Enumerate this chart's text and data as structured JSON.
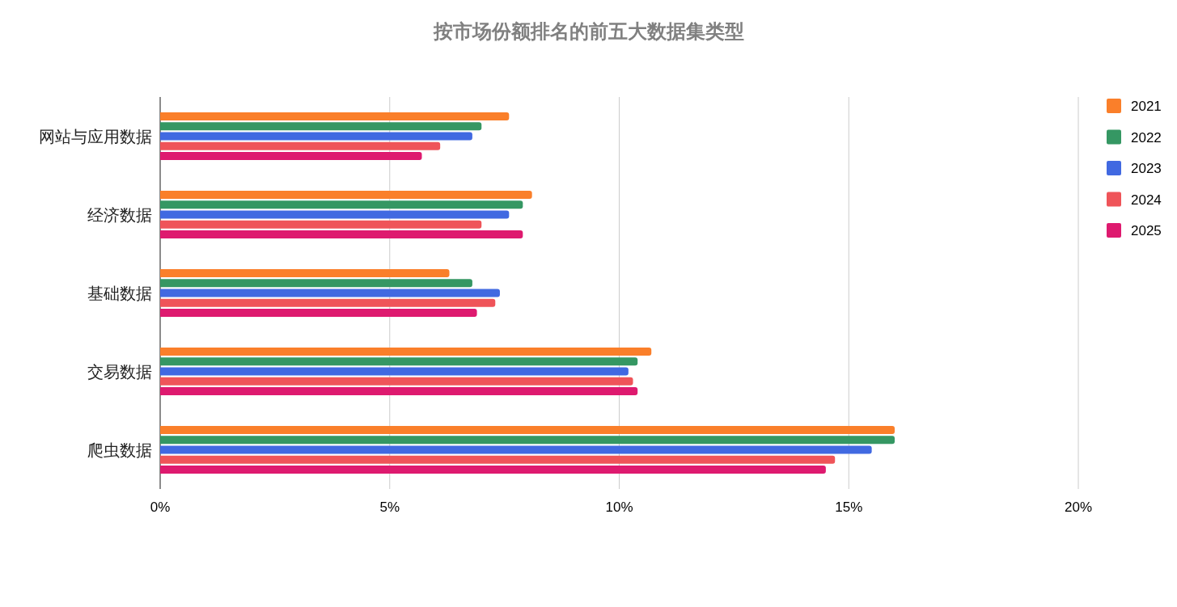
{
  "chart_data": {
    "type": "bar",
    "orientation": "horizontal",
    "title": "按市场份额排名的前五大数据集类型",
    "categories": [
      "网站与应用数据",
      "经济数据",
      "基础数据",
      "交易数据",
      "爬虫数据"
    ],
    "series": [
      {
        "name": "2021",
        "color": "#fa7f2a",
        "values": [
          7.6,
          8.1,
          6.3,
          10.7,
          16.0
        ]
      },
      {
        "name": "2022",
        "color": "#359763",
        "values": [
          7.0,
          7.9,
          6.8,
          10.4,
          16.0
        ]
      },
      {
        "name": "2023",
        "color": "#4169e1",
        "values": [
          6.8,
          7.6,
          7.4,
          10.2,
          15.5
        ]
      },
      {
        "name": "2024",
        "color": "#ef5459",
        "values": [
          6.1,
          7.0,
          7.3,
          10.3,
          14.7
        ]
      },
      {
        "name": "2025",
        "color": "#de1a6f",
        "values": [
          5.7,
          7.9,
          6.9,
          10.4,
          14.5
        ]
      }
    ],
    "xlim": [
      0,
      20
    ],
    "xticks": [
      {
        "value": 0,
        "label": "0%"
      },
      {
        "value": 5,
        "label": "5%"
      },
      {
        "value": 10,
        "label": "10%"
      },
      {
        "value": 15,
        "label": "15%"
      },
      {
        "value": 20,
        "label": "20%"
      }
    ],
    "grid": "x",
    "legend": "top right"
  }
}
